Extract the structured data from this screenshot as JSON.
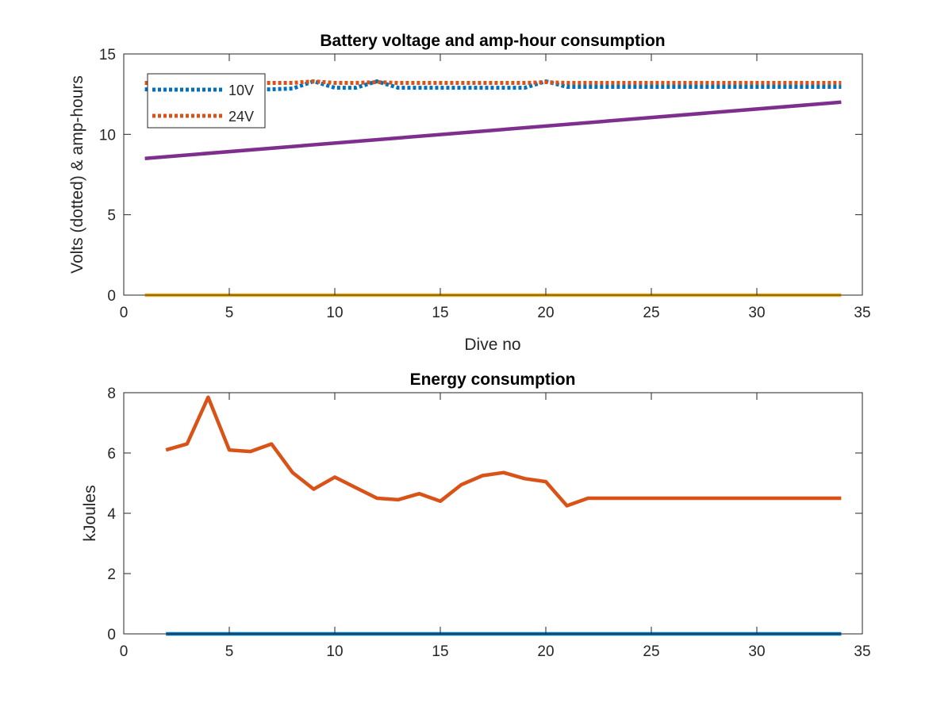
{
  "chart_data": [
    {
      "type": "line",
      "title": "Battery voltage and amp-hour consumption",
      "xlabel": "Dive no",
      "ylabel": "Volts (dotted) & amp-hours",
      "xlim": [
        0,
        35
      ],
      "ylim": [
        0,
        15
      ],
      "xticks": [
        0,
        5,
        10,
        15,
        20,
        25,
        30,
        35
      ],
      "yticks": [
        0,
        5,
        10,
        15
      ],
      "grid": false,
      "legend_position": "top-left",
      "series": [
        {
          "name": "10V",
          "style": "dotted",
          "color": "#0072BD",
          "x": [
            1,
            2,
            3,
            4,
            5,
            6,
            7,
            8,
            9,
            10,
            11,
            12,
            13,
            14,
            15,
            16,
            17,
            18,
            19,
            20,
            21,
            22,
            23,
            24,
            25,
            26,
            27,
            28,
            29,
            30,
            31,
            32,
            33,
            34
          ],
          "y": [
            12.8,
            12.8,
            12.8,
            12.8,
            12.8,
            12.8,
            12.8,
            12.85,
            13.3,
            12.9,
            12.9,
            13.3,
            12.9,
            12.9,
            12.9,
            12.9,
            12.9,
            12.9,
            12.9,
            13.3,
            12.95,
            12.95,
            12.95,
            12.95,
            12.95,
            12.95,
            12.95,
            12.95,
            12.95,
            12.95,
            12.95,
            12.95,
            12.95,
            12.95
          ]
        },
        {
          "name": "24V",
          "style": "dotted",
          "color": "#D95319",
          "x": [
            1,
            2,
            3,
            4,
            5,
            6,
            7,
            8,
            9,
            10,
            11,
            12,
            13,
            14,
            15,
            16,
            17,
            18,
            19,
            20,
            21,
            22,
            23,
            24,
            25,
            26,
            27,
            28,
            29,
            30,
            31,
            32,
            33,
            34
          ],
          "y": [
            13.2,
            13.2,
            13.2,
            13.2,
            13.2,
            13.2,
            13.2,
            13.2,
            13.3,
            13.2,
            13.2,
            13.25,
            13.2,
            13.2,
            13.2,
            13.2,
            13.2,
            13.2,
            13.2,
            13.25,
            13.2,
            13.2,
            13.2,
            13.2,
            13.2,
            13.2,
            13.2,
            13.2,
            13.2,
            13.2,
            13.2,
            13.2,
            13.2,
            13.2
          ]
        },
        {
          "style": "solid",
          "color": "#EDB120",
          "x": [
            1,
            34
          ],
          "y": [
            0,
            0
          ]
        },
        {
          "style": "solid",
          "color": "#7E2F8E",
          "x": [
            1,
            34
          ],
          "y": [
            8.5,
            12.0
          ]
        }
      ]
    },
    {
      "type": "line",
      "title": "Energy consumption",
      "xlabel": "",
      "ylabel": "kJoules",
      "xlim": [
        0,
        35
      ],
      "ylim": [
        0,
        8
      ],
      "xticks": [
        0,
        5,
        10,
        15,
        20,
        25,
        30,
        35
      ],
      "yticks": [
        0,
        2,
        4,
        6,
        8
      ],
      "grid": false,
      "series": [
        {
          "style": "solid",
          "color": "#0072BD",
          "x": [
            2,
            34
          ],
          "y": [
            0,
            0
          ]
        },
        {
          "style": "solid",
          "color": "#D95319",
          "x": [
            2,
            3,
            4,
            5,
            6,
            7,
            8,
            9,
            10,
            11,
            12,
            13,
            14,
            15,
            16,
            17,
            18,
            19,
            20,
            21,
            22,
            23,
            24,
            25,
            26,
            27,
            28,
            29,
            30,
            31,
            32,
            33,
            34
          ],
          "y": [
            6.1,
            6.3,
            7.85,
            6.1,
            6.05,
            6.3,
            5.35,
            4.8,
            5.2,
            4.85,
            4.5,
            4.45,
            4.65,
            4.4,
            4.95,
            5.25,
            5.35,
            5.15,
            5.05,
            4.25,
            4.5,
            4.5,
            4.5,
            4.5,
            4.5,
            4.5,
            4.5,
            4.5,
            4.5,
            4.5,
            4.5,
            4.5,
            4.5
          ]
        }
      ]
    }
  ]
}
